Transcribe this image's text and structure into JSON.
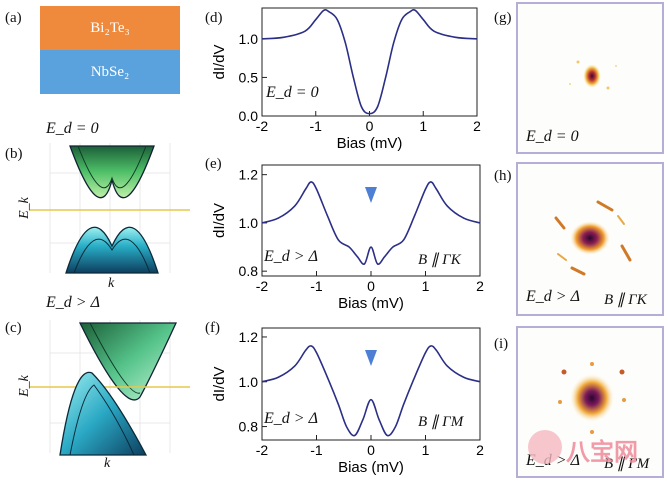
{
  "labels": {
    "a": "(a)",
    "b": "(b)",
    "c": "(c)",
    "d": "(d)",
    "e": "(e)",
    "f": "(f)",
    "g": "(g)",
    "h": "(h)",
    "i": "(i)"
  },
  "heterostructure": {
    "top_layer": "Bi₂Te₃",
    "bottom_layer": "NbSe₂",
    "top_color": "#ef8a3c",
    "bottom_color": "#5aa2dd"
  },
  "band_panels": {
    "b_condition": "E_d = 0",
    "c_condition": "E_d > Δ",
    "y_label": "E_k",
    "x_label": "k",
    "fermi_line_color": "#e6c84a"
  },
  "spectra": {
    "y_label": "dI/dV",
    "x_label": "Bias (mV)",
    "line_color": "#2b2f86",
    "marker_color": "#4d7fd4",
    "d_condition": "E_d = 0",
    "e_condition_left": "E_d > Δ",
    "e_condition_right": "B ∥ ΓK",
    "f_condition_left": "E_d > Δ",
    "f_condition_right": "B ∥ ΓM"
  },
  "maps": {
    "g_condition": "E_d = 0",
    "h_condition_left": "E_d > Δ",
    "h_condition_right": "B ∥ ΓK",
    "i_condition_left": "E_d > Δ",
    "i_condition_right": "B ∥ ΓM",
    "frame_color": "#b6aed6"
  },
  "watermark": "八宝网",
  "chart_data": [
    {
      "type": "line",
      "panel": "d",
      "xlabel": "Bias (mV)",
      "ylabel": "dI/dV",
      "xlim": [
        -2,
        2
      ],
      "ylim": [
        0,
        1.4
      ],
      "xticks": [
        -2,
        -1,
        0,
        1,
        2
      ],
      "yticks": [
        0.0,
        0.5,
        1.0
      ],
      "ytick_labels": [
        "0.0",
        "0.5",
        "1.0"
      ],
      "x": [
        -2.0,
        -1.6,
        -1.2,
        -1.0,
        -0.85,
        -0.75,
        -0.6,
        -0.45,
        -0.3,
        -0.15,
        0.0,
        0.15,
        0.3,
        0.45,
        0.6,
        0.75,
        0.85,
        1.0,
        1.2,
        1.6,
        2.0
      ],
      "y": [
        1.0,
        1.02,
        1.1,
        1.25,
        1.37,
        1.35,
        1.25,
        0.95,
        0.5,
        0.12,
        0.03,
        0.12,
        0.5,
        0.95,
        1.25,
        1.35,
        1.37,
        1.25,
        1.1,
        1.02,
        1.0
      ]
    },
    {
      "type": "line",
      "panel": "e",
      "xlabel": "Bias (mV)",
      "ylabel": "dI/dV",
      "xlim": [
        -2,
        2
      ],
      "ylim": [
        0.78,
        1.24
      ],
      "xticks": [
        -2,
        -1,
        0,
        1,
        2
      ],
      "yticks": [
        0.8,
        1.0,
        1.2
      ],
      "ytick_labels": [
        "0.8",
        "1.0",
        "1.2"
      ],
      "x": [
        -2.0,
        -1.7,
        -1.4,
        -1.2,
        -1.1,
        -1.0,
        -0.8,
        -0.6,
        -0.4,
        -0.25,
        -0.12,
        0.0,
        0.12,
        0.25,
        0.4,
        0.6,
        0.8,
        1.0,
        1.1,
        1.2,
        1.4,
        1.7,
        2.0
      ],
      "y": [
        1.0,
        1.02,
        1.07,
        1.14,
        1.17,
        1.14,
        1.03,
        0.93,
        0.9,
        0.86,
        0.83,
        0.9,
        0.83,
        0.86,
        0.9,
        0.93,
        1.03,
        1.14,
        1.17,
        1.14,
        1.07,
        1.02,
        1.0
      ]
    },
    {
      "type": "line",
      "panel": "f",
      "xlabel": "Bias (mV)",
      "ylabel": "dI/dV",
      "xlim": [
        -2,
        2
      ],
      "ylim": [
        0.74,
        1.24
      ],
      "xticks": [
        -2,
        -1,
        0,
        1,
        2
      ],
      "yticks": [
        0.8,
        1.0,
        1.2
      ],
      "ytick_labels": [
        "0.8",
        "1.0",
        "1.2"
      ],
      "x": [
        -2.0,
        -1.7,
        -1.4,
        -1.2,
        -1.1,
        -1.0,
        -0.8,
        -0.6,
        -0.45,
        -0.3,
        -0.15,
        0.0,
        0.15,
        0.3,
        0.45,
        0.6,
        0.8,
        1.0,
        1.1,
        1.2,
        1.4,
        1.7,
        2.0
      ],
      "y": [
        1.0,
        1.02,
        1.07,
        1.14,
        1.16,
        1.13,
        1.02,
        0.9,
        0.8,
        0.76,
        0.83,
        0.92,
        0.83,
        0.76,
        0.8,
        0.9,
        1.02,
        1.13,
        1.16,
        1.14,
        1.07,
        1.02,
        1.0
      ]
    }
  ]
}
